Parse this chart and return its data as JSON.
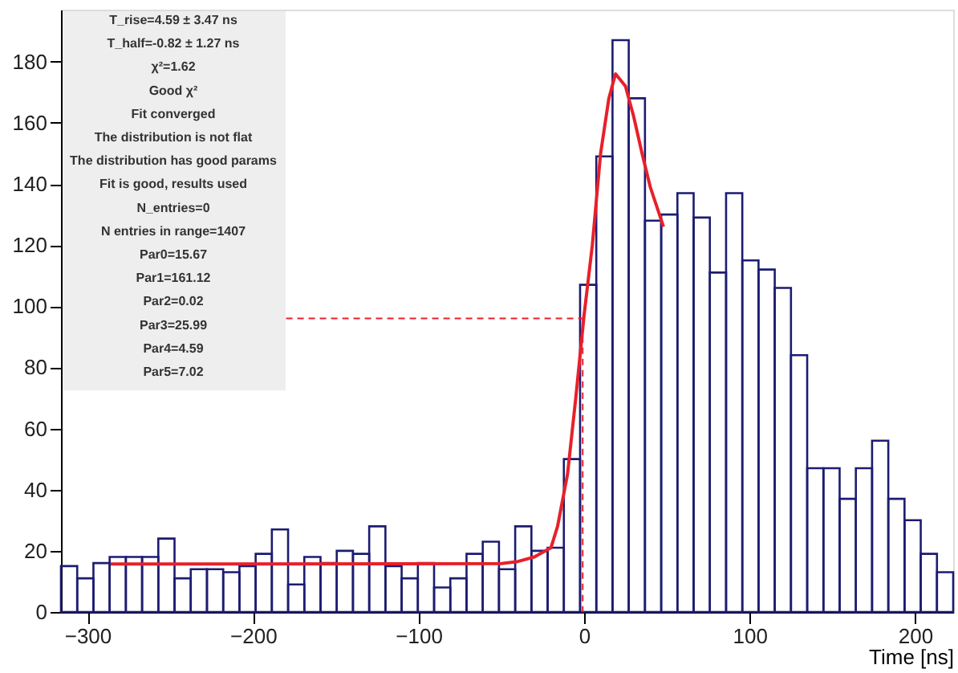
{
  "chart_data": {
    "type": "histogram",
    "xlabel": "Time [ns]",
    "bins": [
      -316,
      -306.2,
      -296.4,
      -286.6,
      -276.8,
      -267,
      -257.2,
      -247.4,
      -237.6,
      -227.8,
      -218,
      -208.2,
      -198.4,
      -188.6,
      -178.8,
      -169,
      -159.2,
      -149.4,
      -139.6,
      -129.8,
      -120,
      -110.2,
      -100.4,
      -90.6,
      -80.8,
      -71,
      -61.2,
      -51.4,
      -41.6,
      -31.8,
      -22,
      -12.2,
      -2.4,
      7.4,
      17.2,
      27,
      36.8,
      46.6,
      56.4,
      66.2,
      76,
      85.8,
      95.6,
      105.4,
      115.2,
      125,
      134.8,
      144.6,
      154.4,
      164.2,
      174,
      183.8,
      193.6,
      203.4,
      213.2,
      223
    ],
    "values": [
      15,
      11,
      16,
      18,
      18,
      18,
      24,
      11,
      14,
      14,
      13,
      15,
      19,
      27,
      9,
      18,
      16,
      20,
      19,
      28,
      15,
      11,
      16,
      8,
      11,
      19,
      23,
      14,
      28,
      20,
      21,
      50,
      107,
      149,
      187,
      168,
      128,
      130,
      137,
      129,
      111,
      137,
      115,
      112,
      106,
      84,
      47,
      47,
      37,
      47,
      56,
      37,
      30,
      19,
      13
    ],
    "color": "#1c1c72",
    "series": [
      {
        "type": "line",
        "color": "#e8202a",
        "x": [
          -286,
          -50,
          -40,
          -30,
          -20,
          -16,
          -10,
          -5,
          0,
          5,
          10,
          15,
          19,
          25,
          30,
          35,
          40,
          48
        ],
        "values": [
          15.7,
          15.8,
          16.5,
          18,
          21,
          28,
          45,
          70,
          97,
          120,
          150,
          168,
          176,
          172,
          162,
          150,
          139,
          126
        ]
      },
      {
        "type": "line",
        "color": "#e8202a",
        "line_style": "dashed",
        "x": [
          -180,
          -0.82,
          -0.82
        ],
        "values": [
          96,
          96,
          0
        ]
      }
    ],
    "xlim": [
      -316,
      223
    ],
    "xticks": [
      -300,
      -200,
      -100,
      0,
      100,
      200
    ],
    "ylim": [
      0,
      197
    ],
    "yticks": [
      0,
      20,
      40,
      60,
      80,
      100,
      120,
      140,
      160,
      180
    ],
    "grid": false,
    "annotations": [
      "T_rise=4.59 ± 3.47 ns",
      "T_half=-0.82 ± 1.27 ns",
      "χ²=1.62",
      "Good χ²",
      "Fit converged",
      "The distribution is not flat",
      "The distribution has good params",
      "Fit is good, results used",
      "N_entries=0",
      "N entries in range=1407",
      "Par0=15.67",
      "Par1=161.12",
      "Par2=0.02",
      "Par3=25.99",
      "Par4=4.59",
      "Par5=7.02"
    ]
  }
}
